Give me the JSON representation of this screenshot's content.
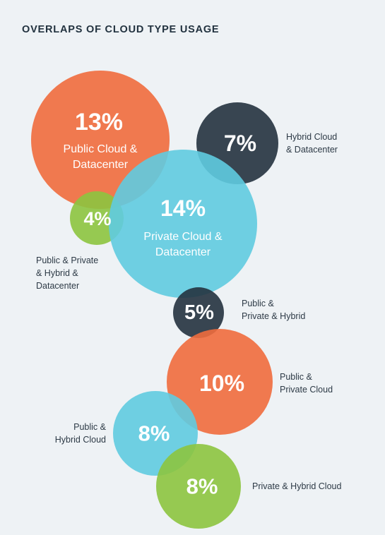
{
  "title": "OVERLAPS OF CLOUD TYPE USAGE",
  "colors": {
    "background": "#eef2f5",
    "orange": "#ef6b3d",
    "cyan": "#5fcbe0",
    "navy": "#24323f",
    "green": "#8cc43f"
  },
  "chart_data": {
    "type": "bubble",
    "title": "OVERLAPS OF CLOUD TYPE USAGE",
    "unit": "%",
    "items": [
      {
        "label": "Public Cloud & Datacenter",
        "value": 13,
        "display": "13%",
        "color": "#ef6b3d"
      },
      {
        "label": "Hybrid Cloud & Datacenter",
        "value": 7,
        "display": "7%",
        "color": "#24323f"
      },
      {
        "label": "Public & Private & Hybrid & Datacenter",
        "value": 4,
        "display": "4%",
        "color": "#8cc43f"
      },
      {
        "label": "Private Cloud & Datacenter",
        "value": 14,
        "display": "14%",
        "color": "#5fcbe0"
      },
      {
        "label": "Public & Private & Hybrid",
        "value": 5,
        "display": "5%",
        "color": "#24323f"
      },
      {
        "label": "Public & Private Cloud",
        "value": 10,
        "display": "10%",
        "color": "#ef6b3d"
      },
      {
        "label": "Public & Hybrid Cloud",
        "value": 8,
        "display": "8%",
        "color": "#5fcbe0"
      },
      {
        "label": "Private & Hybrid Cloud",
        "value": 8,
        "display": "8%",
        "color": "#8cc43f"
      }
    ]
  }
}
